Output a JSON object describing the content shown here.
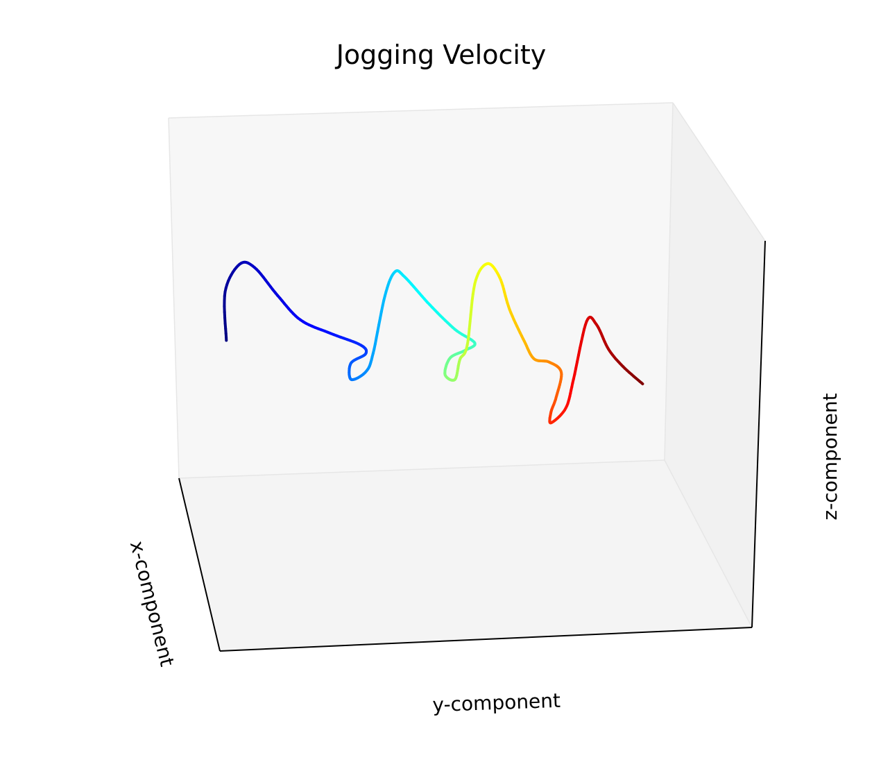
{
  "chart_data": {
    "type": "line",
    "projection": "3d",
    "title": "Jogging Velocity",
    "xlabel": "x-component",
    "ylabel": "y-component",
    "zlabel": "z-component",
    "tick_labels": "hidden",
    "grid": false,
    "colormap": "jet",
    "pane_colors": {
      "back": "#f7f7f7",
      "side": "#f1f1f1",
      "floor": "#f4f4f4"
    },
    "series": [
      {
        "points": [
          [
            0.08,
            -0.86,
            0.2
          ],
          [
            0.08,
            -0.86,
            0.47
          ],
          [
            0.08,
            -0.8,
            0.62
          ],
          [
            0.08,
            -0.74,
            0.6
          ],
          [
            0.08,
            -0.65,
            0.44
          ],
          [
            0.08,
            -0.56,
            0.3
          ],
          [
            0.08,
            -0.44,
            0.22
          ],
          [
            0.08,
            -0.32,
            0.15
          ],
          [
            0.08,
            -0.3,
            0.1
          ],
          [
            0.08,
            -0.36,
            0.05
          ],
          [
            0.08,
            -0.36,
            -0.04
          ],
          [
            0.08,
            -0.3,
            0.0
          ],
          [
            0.08,
            -0.27,
            0.1
          ],
          [
            0.08,
            -0.22,
            0.42
          ],
          [
            0.08,
            -0.18,
            0.55
          ],
          [
            0.08,
            -0.14,
            0.52
          ],
          [
            0.08,
            -0.04,
            0.36
          ],
          [
            0.08,
            0.06,
            0.22
          ],
          [
            0.08,
            0.14,
            0.14
          ],
          [
            0.08,
            0.1,
            0.1
          ],
          [
            0.08,
            0.04,
            0.06
          ],
          [
            0.08,
            0.02,
            -0.03
          ],
          [
            0.08,
            0.06,
            -0.06
          ],
          [
            0.08,
            0.08,
            0.05
          ],
          [
            0.08,
            0.11,
            0.13
          ],
          [
            0.08,
            0.14,
            0.47
          ],
          [
            0.08,
            0.19,
            0.58
          ],
          [
            0.08,
            0.24,
            0.5
          ],
          [
            0.08,
            0.28,
            0.32
          ],
          [
            0.08,
            0.34,
            0.14
          ],
          [
            0.08,
            0.38,
            0.04
          ],
          [
            0.08,
            0.44,
            0.02
          ],
          [
            0.08,
            0.49,
            -0.04
          ],
          [
            0.08,
            0.47,
            -0.18
          ],
          [
            0.08,
            0.45,
            -0.26
          ],
          [
            0.08,
            0.45,
            -0.32
          ],
          [
            0.08,
            0.51,
            -0.24
          ],
          [
            0.08,
            0.54,
            -0.08
          ],
          [
            0.08,
            0.59,
            0.24
          ],
          [
            0.08,
            0.63,
            0.22
          ],
          [
            0.08,
            0.68,
            0.08
          ],
          [
            0.08,
            0.74,
            -0.02
          ],
          [
            0.08,
            0.82,
            -0.12
          ]
        ]
      }
    ],
    "xlim": [
      -1,
      1
    ],
    "ylim": [
      -1,
      1
    ],
    "zlim": [
      -1,
      1
    ]
  }
}
